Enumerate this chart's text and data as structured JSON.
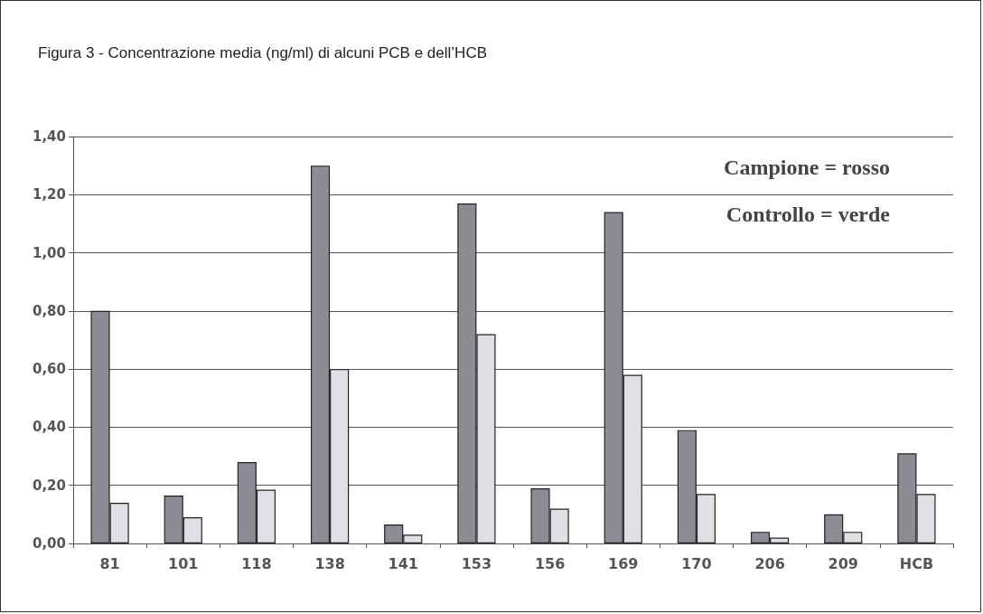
{
  "chart_data": {
    "type": "bar",
    "title": "Figura 3 - Concentrazione media (ng/ml) di alcuni PCB e dell’HCB",
    "categories": [
      "81",
      "101",
      "118",
      "138",
      "141",
      "153",
      "156",
      "169",
      "170",
      "206",
      "209",
      "HCB"
    ],
    "series": [
      {
        "color": "#8c8c94",
        "values": [
          0.8,
          0.165,
          0.28,
          1.3,
          0.065,
          1.17,
          0.19,
          1.14,
          0.39,
          0.04,
          0.1,
          0.31
        ]
      },
      {
        "color": "#e0e0e4",
        "values": [
          0.14,
          0.09,
          0.185,
          0.6,
          0.03,
          0.72,
          0.12,
          0.58,
          0.17,
          0.02,
          0.04,
          0.17
        ]
      }
    ],
    "ylim": [
      0,
      1.4
    ],
    "yticks": [
      {
        "value": 0,
        "label": "0,00"
      },
      {
        "value": 0.2,
        "label": "0,20"
      },
      {
        "value": 0.4,
        "label": "0,40"
      },
      {
        "value": 0.6,
        "label": "0,60"
      },
      {
        "value": 0.8,
        "label": "0,80"
      },
      {
        "value": 1.0,
        "label": "1,00"
      },
      {
        "value": 1.2,
        "label": "1,20"
      },
      {
        "value": 1.4,
        "label": "1,40"
      }
    ],
    "grid": "y",
    "annotations": [
      "Campione = rosso",
      "Controllo = verde"
    ]
  }
}
